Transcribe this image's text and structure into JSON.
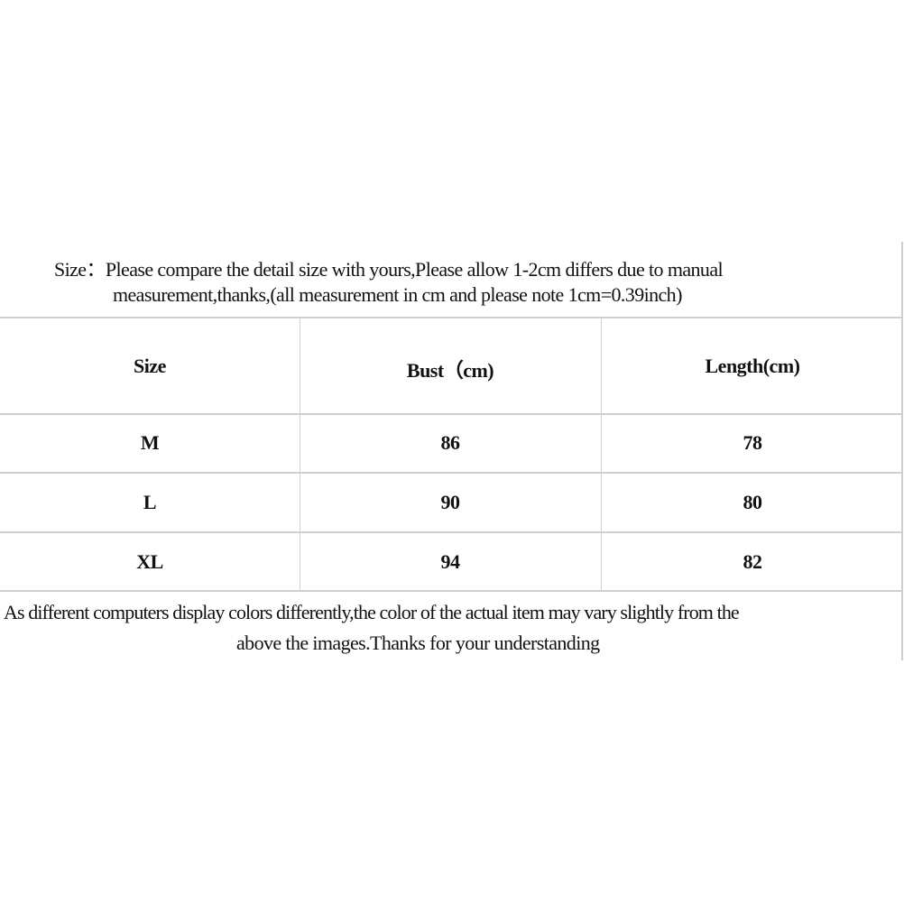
{
  "intro": {
    "line1": "Size：Please compare the detail size with yours,Please allow 1-2cm differs due to manual",
    "line2": "measurement,thanks,(all measurement in cm and please note 1cm=0.39inch)"
  },
  "table": {
    "headers": [
      "Size",
      "Bust（cm)",
      "Length(cm)"
    ],
    "rows": [
      [
        "M",
        "86",
        "78"
      ],
      [
        "L",
        "90",
        "80"
      ],
      [
        "XL",
        "94",
        "82"
      ]
    ]
  },
  "footer": {
    "line1": "As different computers display colors differently,the color of the actual item may vary slightly from the",
    "line2": "above the images.Thanks for your understanding"
  }
}
